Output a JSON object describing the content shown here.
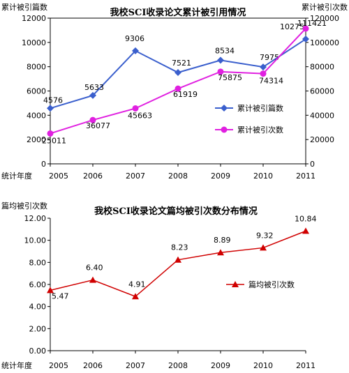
{
  "colors": {
    "pieces": "#3a5fcd",
    "citations": "#e020e0",
    "avg": "#d00000",
    "axis": "#000000"
  },
  "chart_data": [
    {
      "type": "line",
      "title": "我校SCI收录论文累计被引用情况",
      "ylabel_left": "累计被引篇数",
      "ylabel_right": "累计被引次数",
      "xlabel": "统计年度",
      "categories": [
        "2005",
        "2006",
        "2007",
        "2008",
        "2009",
        "2010",
        "2011"
      ],
      "y_left_ticks": [
        "0",
        "2000",
        "4000",
        "6000",
        "8000",
        "10000",
        "12000"
      ],
      "y_right_ticks": [
        "0",
        "20000",
        "40000",
        "60000",
        "80000",
        "100000",
        "120000"
      ],
      "ylim_left": [
        0,
        12000
      ],
      "ylim_right": [
        0,
        120000
      ],
      "legend_position": "right-middle",
      "series": [
        {
          "name": "累计被引篇数",
          "axis": "left",
          "marker": "diamond",
          "color": "#3a5fcd",
          "values": [
            4576,
            5633,
            9306,
            7521,
            8534,
            7975,
            10275
          ],
          "labels": [
            "4576",
            "5633",
            "9306",
            "7521",
            "8534",
            "7975",
            "10275"
          ]
        },
        {
          "name": "累计被引次数",
          "axis": "right",
          "marker": "circle",
          "color": "#e020e0",
          "values": [
            25011,
            36077,
            45663,
            61919,
            75875,
            74314,
            111421
          ],
          "labels": [
            "25011",
            "36077",
            "45663",
            "61919",
            "75875",
            "74314",
            "111421"
          ]
        }
      ]
    },
    {
      "type": "line",
      "title": "我校SCI收录论文篇均被引次数分布情况",
      "ylabel": "篇均被引次数",
      "xlabel": "统计年度",
      "categories": [
        "2005",
        "2006",
        "2007",
        "2008",
        "2009",
        "2010",
        "2011"
      ],
      "y_ticks": [
        "0.00",
        "2.00",
        "4.00",
        "6.00",
        "8.00",
        "10.00",
        "12.00"
      ],
      "ylim": [
        0,
        12
      ],
      "legend_position": "right-middle",
      "series": [
        {
          "name": "篇均被引次数",
          "marker": "triangle",
          "color": "#d00000",
          "values": [
            5.47,
            6.4,
            4.91,
            8.23,
            8.89,
            9.32,
            10.84
          ],
          "labels": [
            "5.47",
            "6.40",
            "4.91",
            "8.23",
            "8.89",
            "9.32",
            "10.84"
          ]
        }
      ]
    }
  ]
}
